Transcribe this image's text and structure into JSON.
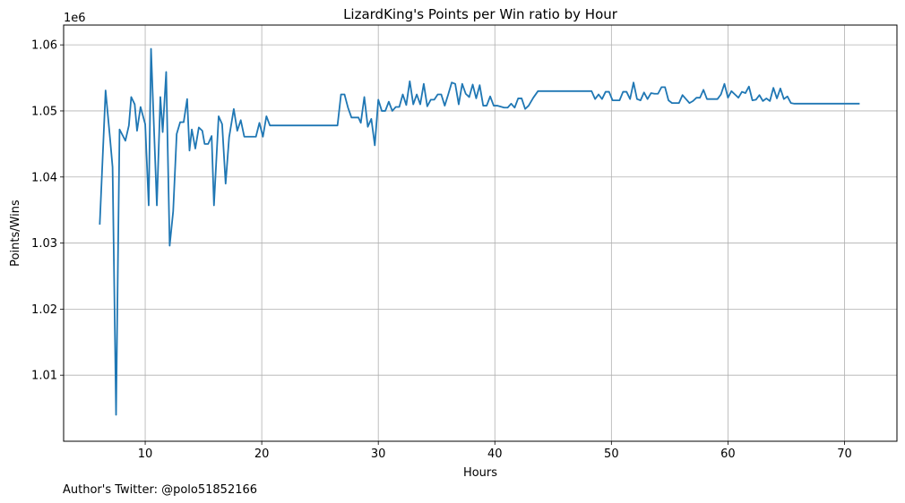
{
  "chart_data": {
    "type": "line",
    "title": "LizardKing's Points per Win ratio by Hour",
    "xlabel": "Hours",
    "ylabel": "Points/Wins",
    "y_offset_label": "1e6",
    "xlim": [
      3,
      74.5
    ],
    "ylim": [
      1.0,
      1.063
    ],
    "x_ticks": [
      10,
      20,
      30,
      40,
      50,
      60,
      70
    ],
    "y_ticks": [
      1.01,
      1.02,
      1.03,
      1.04,
      1.05,
      1.06
    ],
    "y_tick_labels": [
      "1.01",
      "1.02",
      "1.03",
      "1.04",
      "1.05",
      "1.06"
    ],
    "grid": true,
    "line_color": "#1f77b4",
    "series": [
      {
        "values": [
          [
            6.1,
            1.0328
          ],
          [
            6.6,
            1.0531
          ],
          [
            7.0,
            1.0455
          ],
          [
            7.2,
            1.0415
          ],
          [
            7.5,
            1.004
          ],
          [
            7.8,
            1.0472
          ],
          [
            8.3,
            1.0455
          ],
          [
            8.6,
            1.0478
          ],
          [
            8.8,
            1.0521
          ],
          [
            9.1,
            1.051
          ],
          [
            9.3,
            1.047
          ],
          [
            9.6,
            1.0506
          ],
          [
            10.0,
            1.048
          ],
          [
            10.3,
            1.0357
          ],
          [
            10.5,
            1.0594
          ],
          [
            11.0,
            1.0357
          ],
          [
            11.3,
            1.0521
          ],
          [
            11.5,
            1.0468
          ],
          [
            11.8,
            1.0559
          ],
          [
            12.1,
            1.0296
          ],
          [
            12.4,
            1.0348
          ],
          [
            12.7,
            1.0465
          ],
          [
            13.0,
            1.0483
          ],
          [
            13.3,
            1.0483
          ],
          [
            13.6,
            1.0518
          ],
          [
            13.8,
            1.044
          ],
          [
            14.0,
            1.0472
          ],
          [
            14.3,
            1.0443
          ],
          [
            14.6,
            1.0475
          ],
          [
            14.9,
            1.047
          ],
          [
            15.1,
            1.045
          ],
          [
            15.4,
            1.045
          ],
          [
            15.7,
            1.0462
          ],
          [
            15.9,
            1.0357
          ],
          [
            16.3,
            1.0492
          ],
          [
            16.6,
            1.048
          ],
          [
            16.9,
            1.039
          ],
          [
            17.2,
            1.046
          ],
          [
            17.6,
            1.0503
          ],
          [
            17.9,
            1.047
          ],
          [
            18.2,
            1.0486
          ],
          [
            18.5,
            1.0461
          ],
          [
            19.5,
            1.0461
          ],
          [
            19.8,
            1.0482
          ],
          [
            20.1,
            1.0461
          ],
          [
            20.4,
            1.0492
          ],
          [
            20.7,
            1.0478
          ],
          [
            26.5,
            1.0478
          ],
          [
            26.8,
            1.0525
          ],
          [
            27.1,
            1.0525
          ],
          [
            27.4,
            1.0505
          ],
          [
            27.7,
            1.049
          ],
          [
            28.3,
            1.049
          ],
          [
            28.5,
            1.0482
          ],
          [
            28.8,
            1.0521
          ],
          [
            29.1,
            1.0476
          ],
          [
            29.4,
            1.0488
          ],
          [
            29.7,
            1.0448
          ],
          [
            30.0,
            1.0517
          ],
          [
            30.3,
            1.05
          ],
          [
            30.6,
            1.05
          ],
          [
            30.9,
            1.0514
          ],
          [
            31.2,
            1.05
          ],
          [
            31.5,
            1.0506
          ],
          [
            31.8,
            1.0506
          ],
          [
            32.1,
            1.0525
          ],
          [
            32.4,
            1.0509
          ],
          [
            32.7,
            1.0545
          ],
          [
            33.0,
            1.051
          ],
          [
            33.3,
            1.0525
          ],
          [
            33.6,
            1.051
          ],
          [
            33.9,
            1.0541
          ],
          [
            34.2,
            1.0507
          ],
          [
            34.5,
            1.0517
          ],
          [
            34.8,
            1.0517
          ],
          [
            35.1,
            1.0525
          ],
          [
            35.4,
            1.0525
          ],
          [
            35.7,
            1.0508
          ],
          [
            36.0,
            1.0525
          ],
          [
            36.3,
            1.0543
          ],
          [
            36.6,
            1.0541
          ],
          [
            36.9,
            1.051
          ],
          [
            37.2,
            1.0541
          ],
          [
            37.5,
            1.0526
          ],
          [
            37.8,
            1.0521
          ],
          [
            38.1,
            1.054
          ],
          [
            38.4,
            1.0519
          ],
          [
            38.7,
            1.0539
          ],
          [
            39.0,
            1.0508
          ],
          [
            39.3,
            1.0508
          ],
          [
            39.6,
            1.0522
          ],
          [
            39.9,
            1.0508
          ],
          [
            40.2,
            1.0508
          ],
          [
            40.8,
            1.0505
          ],
          [
            41.1,
            1.0505
          ],
          [
            41.4,
            1.0511
          ],
          [
            41.7,
            1.0505
          ],
          [
            42.0,
            1.0519
          ],
          [
            42.3,
            1.0519
          ],
          [
            42.6,
            1.0503
          ],
          [
            42.9,
            1.0508
          ],
          [
            43.3,
            1.052
          ],
          [
            43.7,
            1.053
          ],
          [
            48.3,
            1.053
          ],
          [
            48.6,
            1.0518
          ],
          [
            48.9,
            1.0525
          ],
          [
            49.2,
            1.0518
          ],
          [
            49.5,
            1.0529
          ],
          [
            49.8,
            1.0529
          ],
          [
            50.1,
            1.0516
          ],
          [
            50.4,
            1.0516
          ],
          [
            50.7,
            1.0516
          ],
          [
            51.0,
            1.0529
          ],
          [
            51.3,
            1.0529
          ],
          [
            51.6,
            1.0518
          ],
          [
            51.9,
            1.0543
          ],
          [
            52.2,
            1.0518
          ],
          [
            52.5,
            1.0516
          ],
          [
            52.8,
            1.0528
          ],
          [
            53.1,
            1.0518
          ],
          [
            53.4,
            1.0527
          ],
          [
            53.7,
            1.0526
          ],
          [
            54.0,
            1.0526
          ],
          [
            54.3,
            1.0536
          ],
          [
            54.6,
            1.0536
          ],
          [
            54.9,
            1.0516
          ],
          [
            55.2,
            1.0512
          ],
          [
            55.5,
            1.0512
          ],
          [
            55.8,
            1.0512
          ],
          [
            56.1,
            1.0524
          ],
          [
            56.4,
            1.0518
          ],
          [
            56.7,
            1.0512
          ],
          [
            57.0,
            1.0515
          ],
          [
            57.3,
            1.052
          ],
          [
            57.6,
            1.052
          ],
          [
            57.9,
            1.0532
          ],
          [
            58.2,
            1.0518
          ],
          [
            58.5,
            1.0518
          ],
          [
            58.8,
            1.0518
          ],
          [
            59.1,
            1.0518
          ],
          [
            59.4,
            1.0525
          ],
          [
            59.7,
            1.0541
          ],
          [
            60.0,
            1.052
          ],
          [
            60.3,
            1.053
          ],
          [
            60.6,
            1.0525
          ],
          [
            60.9,
            1.052
          ],
          [
            61.2,
            1.0529
          ],
          [
            61.5,
            1.0527
          ],
          [
            61.8,
            1.0537
          ],
          [
            62.1,
            1.0516
          ],
          [
            62.4,
            1.0517
          ],
          [
            62.7,
            1.0524
          ],
          [
            63.0,
            1.0515
          ],
          [
            63.3,
            1.0519
          ],
          [
            63.6,
            1.0515
          ],
          [
            63.9,
            1.0535
          ],
          [
            64.2,
            1.0519
          ],
          [
            64.5,
            1.0534
          ],
          [
            64.8,
            1.0518
          ],
          [
            65.1,
            1.0522
          ],
          [
            65.4,
            1.0512
          ],
          [
            65.7,
            1.0511
          ],
          [
            71.3,
            1.0511
          ]
        ]
      }
    ]
  },
  "footer": {
    "author_note": "Author's Twitter: @polo51852166"
  }
}
